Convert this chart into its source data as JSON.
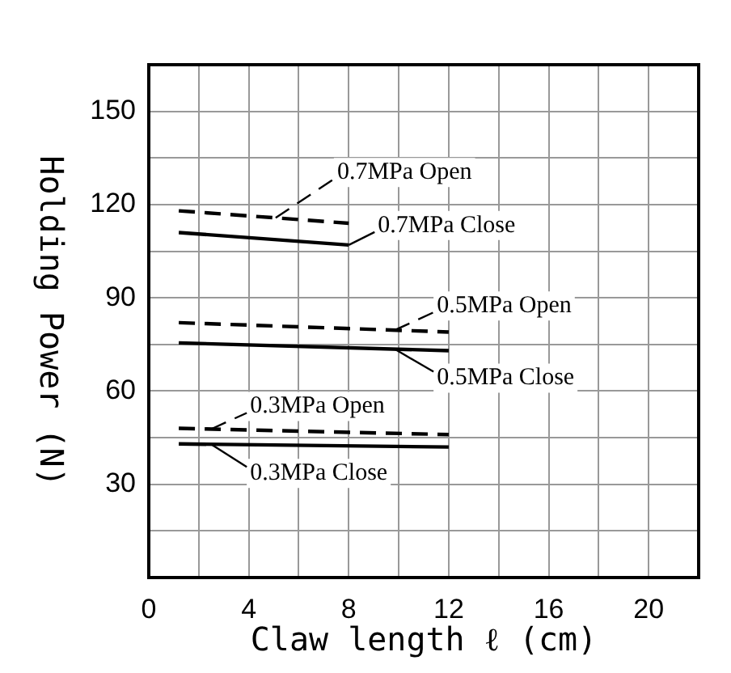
{
  "chart_data": {
    "type": "line",
    "xlabel": "Claw length ℓ (cm)",
    "ylabel": "Holding Power (N)",
    "xlim": [
      0,
      22
    ],
    "xticks": [
      0,
      {
        "value": 2,
        "label": null
      },
      4,
      {
        "value": 6,
        "label": null
      },
      8,
      {
        "value": 10,
        "label": null
      },
      12,
      {
        "value": 14,
        "label": null
      },
      16,
      {
        "value": 18,
        "label": null
      },
      20,
      {
        "value": 22,
        "label": null
      }
    ],
    "ylim": [
      0,
      165
    ],
    "yticks": [
      {
        "value": 15,
        "label": null
      },
      30,
      {
        "value": 45,
        "label": null
      },
      60,
      {
        "value": 75,
        "label": null
      },
      90,
      {
        "value": 105,
        "label": null
      },
      120,
      {
        "value": 135,
        "label": null
      },
      150,
      {
        "value": 165,
        "label": null
      }
    ],
    "grid": true,
    "legend": "bottom left",
    "marker": "none",
    "series": [
      {
        "name": "0.7MPa Open",
        "color": "#000000",
        "line_style": "dashed",
        "x": [
          1.2,
          8
        ],
        "values": [
          118,
          114
        ]
      },
      {
        "name": "0.7MPa Close",
        "color": "#000000",
        "line_style": "solid",
        "x": [
          1.2,
          8
        ],
        "values": [
          111,
          107
        ]
      },
      {
        "name": "0.5MPa Open",
        "color": "#000000",
        "line_style": "dashed",
        "x": [
          1.2,
          12
        ],
        "values": [
          82,
          79
        ]
      },
      {
        "name": "0.5MPa Close",
        "color": "#000000",
        "line_style": "solid",
        "x": [
          1.2,
          12
        ],
        "values": [
          75.5,
          73
        ]
      },
      {
        "name": "0.3MPa Open",
        "color": "#000000",
        "line_style": "dashed",
        "x": [
          1.2,
          12
        ],
        "values": [
          48,
          46
        ]
      },
      {
        "name": "0.3MPa Close",
        "color": "#000000",
        "line_style": "solid",
        "x": [
          1.2,
          12
        ],
        "values": [
          43,
          42
        ]
      }
    ]
  }
}
